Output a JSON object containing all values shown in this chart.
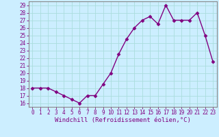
{
  "x": [
    0,
    1,
    2,
    3,
    4,
    5,
    6,
    7,
    8,
    9,
    10,
    11,
    12,
    13,
    14,
    15,
    16,
    17,
    18,
    19,
    20,
    21,
    22,
    23
  ],
  "y": [
    18,
    18,
    18,
    17.5,
    17,
    16.5,
    16,
    17,
    17,
    18.5,
    20,
    22.5,
    24.5,
    26,
    27,
    27.5,
    26.5,
    29,
    27,
    27,
    27,
    28,
    25,
    21.5
  ],
  "line_color": "#800080",
  "marker": "D",
  "marker_size": 2.5,
  "bg_color": "#cceeff",
  "grid_color": "#aadddd",
  "xlabel": "Windchill (Refroidissement éolien,°C)",
  "ylim": [
    15.5,
    29.5
  ],
  "xlim": [
    -0.5,
    23.5
  ],
  "yticks": [
    16,
    17,
    18,
    19,
    20,
    21,
    22,
    23,
    24,
    25,
    26,
    27,
    28,
    29
  ],
  "xticks": [
    0,
    1,
    2,
    3,
    4,
    5,
    6,
    7,
    8,
    9,
    10,
    11,
    12,
    13,
    14,
    15,
    16,
    17,
    18,
    19,
    20,
    21,
    22,
    23
  ],
  "tick_color": "#800080",
  "tick_fontsize": 5.5,
  "xlabel_fontsize": 6.5,
  "line_width": 1.0,
  "spine_color": "#888888"
}
